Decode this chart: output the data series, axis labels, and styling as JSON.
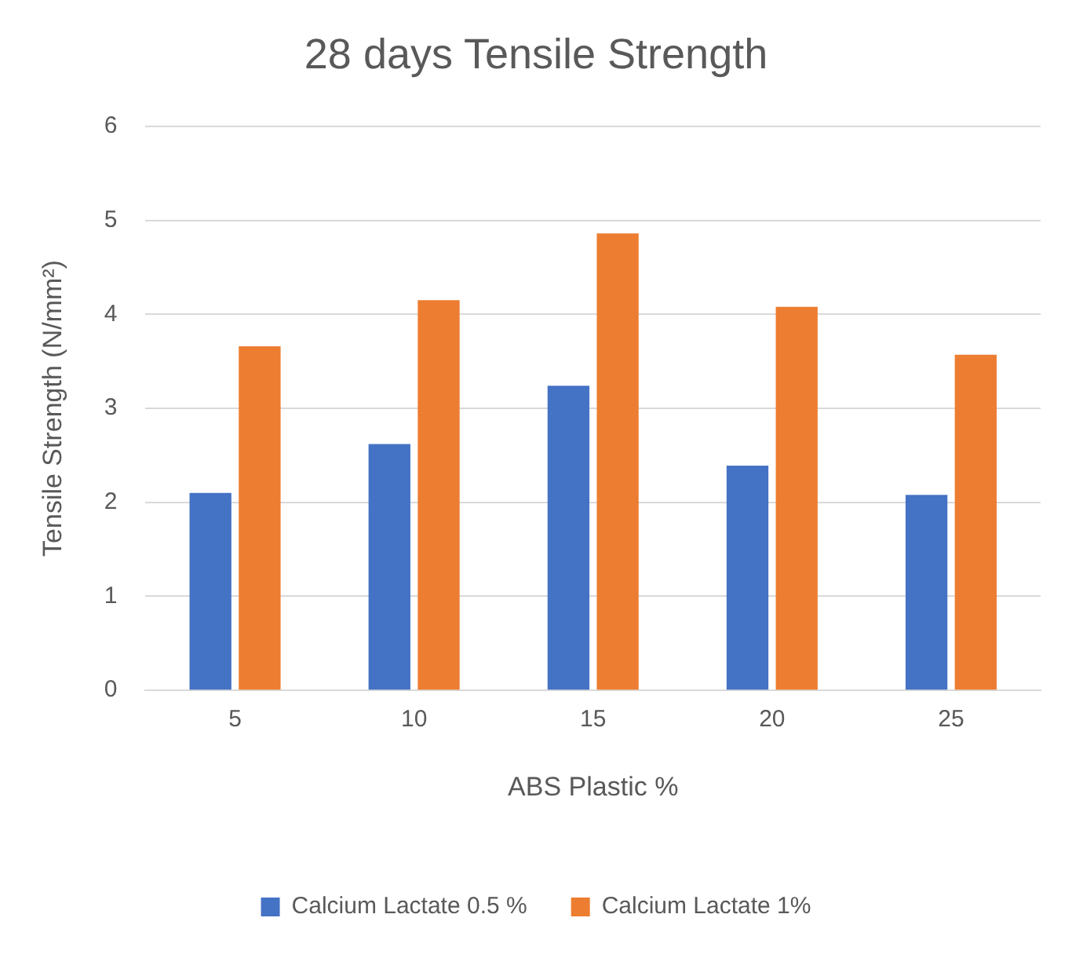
{
  "chart_data": {
    "type": "bar",
    "title": "28 days Tensile Strength",
    "xlabel": "ABS Plastic %",
    "ylabel": "Tensile Strength (N/mm²)",
    "categories": [
      "5",
      "10",
      "15",
      "20",
      "25"
    ],
    "series": [
      {
        "name": "Calcium Lactate 0.5 %",
        "color": "#4472c4",
        "values": [
          2.1,
          2.62,
          3.24,
          2.39,
          2.08
        ]
      },
      {
        "name": "Calcium Lactate 1%",
        "color": "#ed7d31",
        "values": [
          3.66,
          4.15,
          4.86,
          4.08,
          3.57
        ]
      }
    ],
    "ylim": [
      0,
      6
    ],
    "yticks": [
      0,
      1,
      2,
      3,
      4,
      5,
      6
    ],
    "grid": "y",
    "legend": "bottom"
  }
}
